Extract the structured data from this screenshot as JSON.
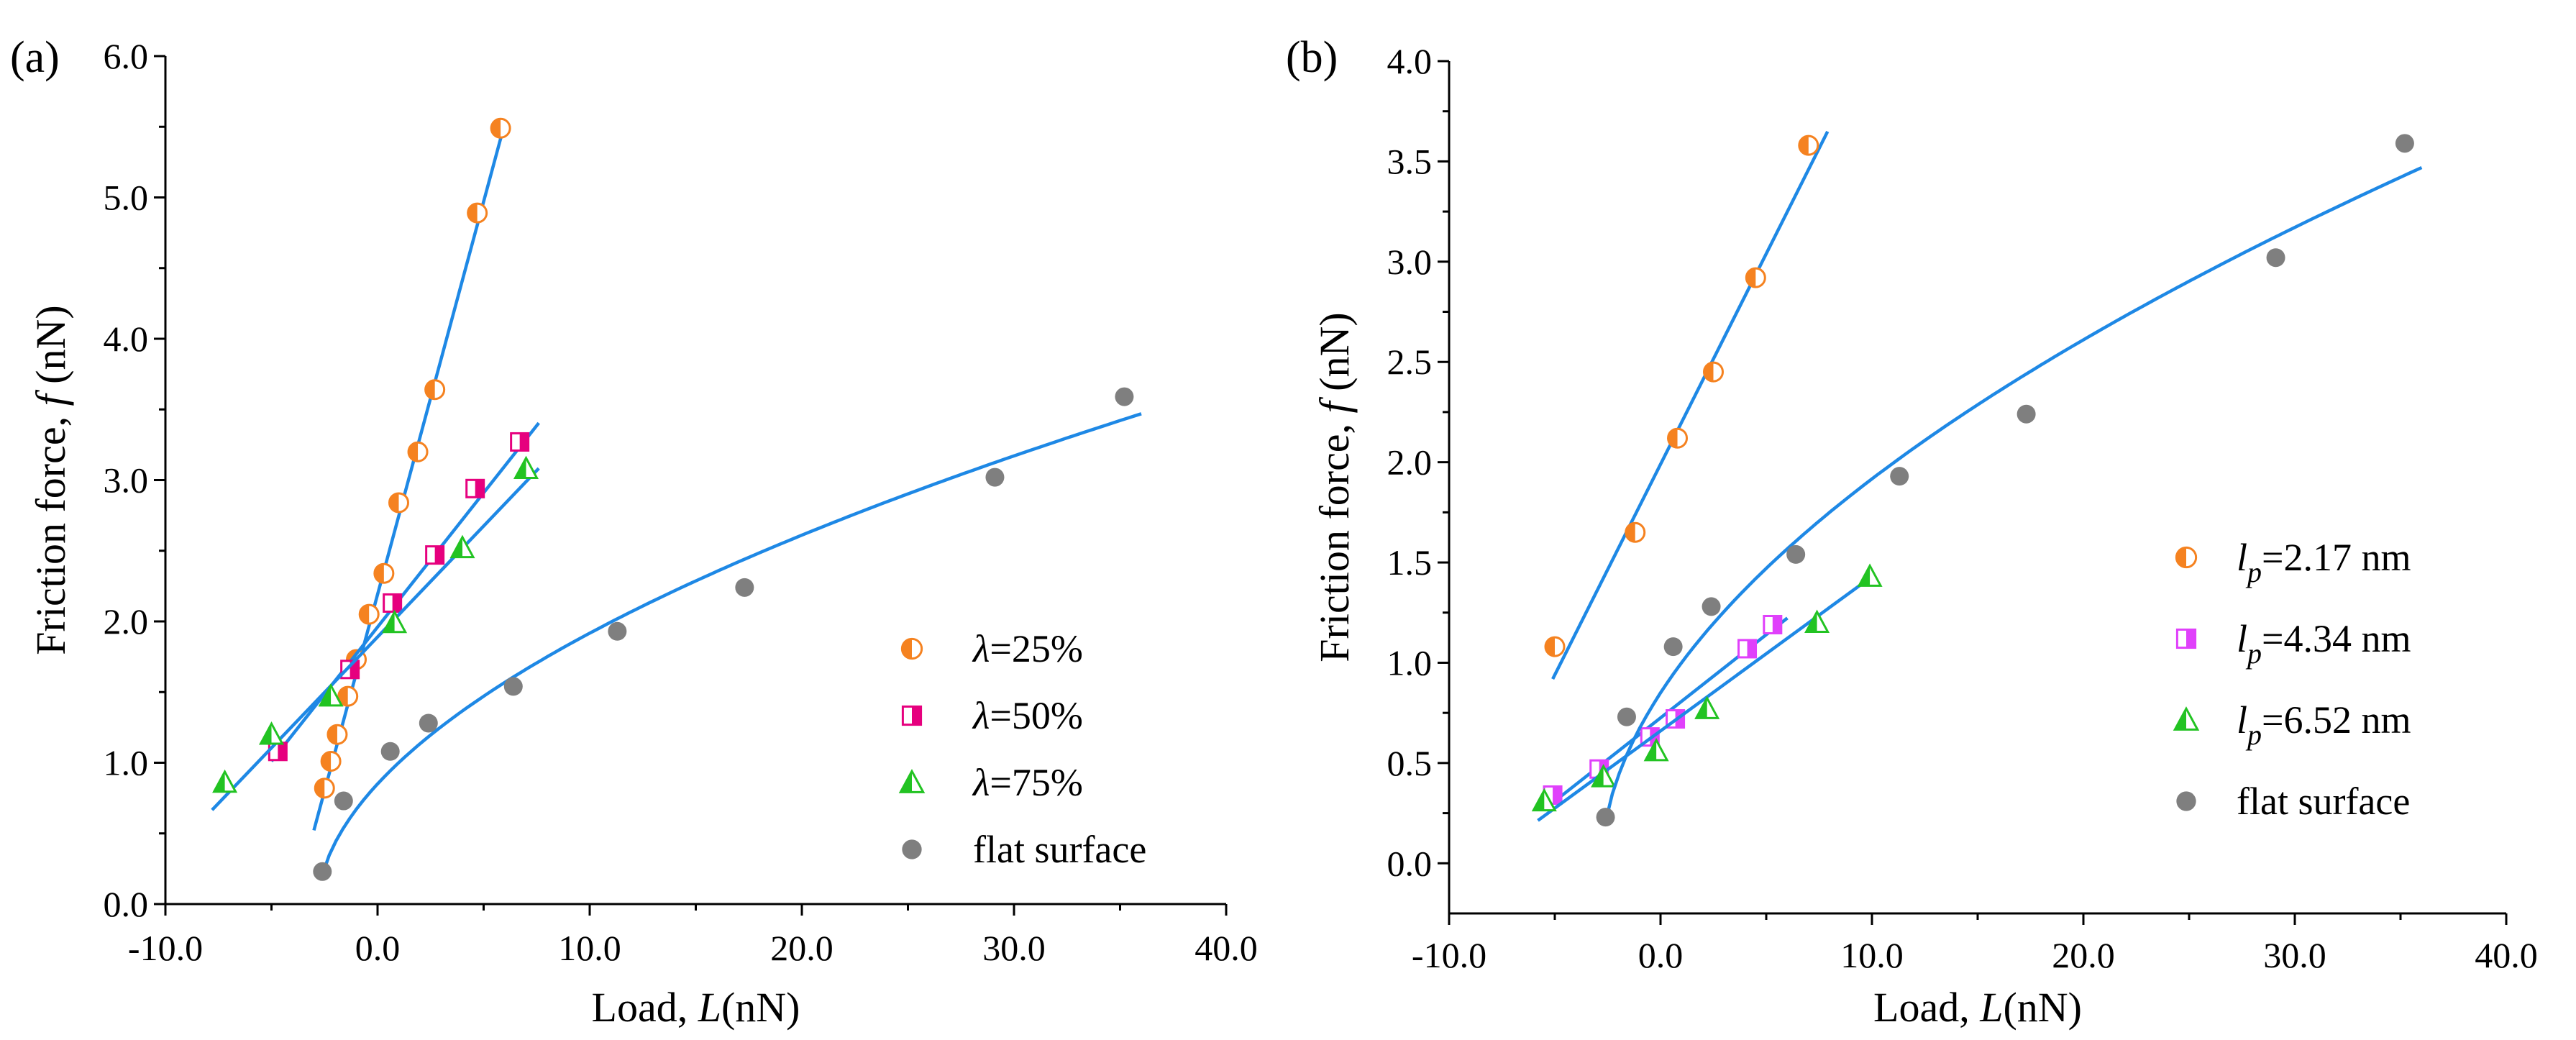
{
  "chart_data": [
    {
      "panel": "(a)",
      "type": "scatter",
      "xlabel": "Load, L(nN)",
      "xlabel_parts": [
        "Load, ",
        "L",
        "(nN)"
      ],
      "ylabel": "Friction force, f (nN)",
      "ylabel_parts": [
        "Friction force, ",
        "f",
        " (nN)"
      ],
      "xlim": [
        -10,
        40
      ],
      "ylim": [
        0,
        6
      ],
      "xticks": [
        -10,
        0,
        10,
        20,
        30,
        40
      ],
      "xtick_labels": [
        "-10.0",
        "0.0",
        "10.0",
        "20.0",
        "30.0",
        "40.0"
      ],
      "yticks": [
        0,
        1,
        2,
        3,
        4,
        5,
        6
      ],
      "ytick_labels": [
        "0.0",
        "1.0",
        "2.0",
        "3.0",
        "4.0",
        "5.0",
        "6.0"
      ],
      "legend_position": "bottom-right",
      "series": [
        {
          "name": "λ=25%",
          "label_parts": [
            "λ",
            "=25%"
          ],
          "marker": "circle-half",
          "color": "#F58220",
          "x": [
            -2.5,
            -2.2,
            -1.9,
            -1.4,
            -1.0,
            -0.4,
            0.3,
            1.0,
            1.9,
            2.7,
            4.7,
            5.8
          ],
          "y": [
            0.82,
            1.01,
            1.2,
            1.47,
            1.73,
            2.05,
            2.34,
            2.84,
            3.2,
            3.64,
            4.89,
            5.49
          ],
          "fit": {
            "kind": "linear",
            "x0": -3.0,
            "x1": 5.9,
            "slope": 0.556,
            "intercept": 2.19
          }
        },
        {
          "name": "λ=50%",
          "label_parts": [
            "λ",
            "=50%"
          ],
          "marker": "square-half",
          "color": "#E6007E",
          "x": [
            -4.7,
            -1.3,
            0.7,
            2.7,
            4.6,
            6.7
          ],
          "y": [
            1.08,
            1.66,
            2.13,
            2.47,
            2.94,
            3.27
          ],
          "fit": {
            "kind": "linear",
            "x0": -5.0,
            "x1": 7.6,
            "slope": 0.19,
            "intercept": 1.96
          }
        },
        {
          "name": "λ=75%",
          "label_parts": [
            "λ",
            "=75%"
          ],
          "marker": "triangle-half",
          "color": "#22C322",
          "x": [
            -7.2,
            -5.0,
            -2.2,
            0.8,
            4.0,
            7.0
          ],
          "y": [
            0.86,
            1.2,
            1.47,
            1.99,
            2.52,
            3.08
          ],
          "fit": {
            "kind": "linear",
            "x0": -7.8,
            "x1": 7.6,
            "slope": 0.157,
            "intercept": 1.89
          }
        },
        {
          "name": "flat surface",
          "label_parts": [
            "",
            "flat surface"
          ],
          "marker": "circle-filled",
          "color": "#7F7F7F",
          "x": [
            -2.6,
            -1.6,
            0.6,
            2.4,
            6.4,
            11.3,
            17.3,
            29.1,
            35.2
          ],
          "y": [
            0.23,
            0.73,
            1.08,
            1.28,
            1.54,
            1.93,
            2.24,
            3.02,
            3.59
          ],
          "fit": {
            "kind": "power",
            "x0": -2.6,
            "x1": 36.0,
            "x_offset": 2.8,
            "a": 0.49,
            "b": 0.535
          }
        }
      ]
    },
    {
      "panel": "(b)",
      "type": "scatter",
      "xlabel": "Load, L(nN)",
      "xlabel_parts": [
        "Load, ",
        "L",
        "(nN)"
      ],
      "ylabel": "Friction force, f (nN)",
      "ylabel_parts": [
        "Friction force, ",
        "f",
        " (nN)"
      ],
      "xlim": [
        -10,
        40
      ],
      "ylim": [
        -0.25,
        4
      ],
      "xticks": [
        -10,
        0,
        10,
        20,
        30,
        40
      ],
      "xtick_labels": [
        "-10.0",
        "0.0",
        "10.0",
        "20.0",
        "30.0",
        "40.0"
      ],
      "yticks": [
        0,
        0.5,
        1,
        1.5,
        2,
        2.5,
        3,
        3.5,
        4
      ],
      "ytick_labels": [
        "0.0",
        "0.5",
        "1.0",
        "1.5",
        "2.0",
        "2.5",
        "3.0",
        "3.5",
        "4.0"
      ],
      "legend_position": "right",
      "series": [
        {
          "name": "lp=2.17 nm",
          "label_parts": [
            "l",
            "p",
            "=2.17 nm"
          ],
          "marker": "circle-half",
          "color": "#F58220",
          "x": [
            -5.0,
            -1.2,
            0.8,
            2.5,
            4.5,
            7.0
          ],
          "y": [
            1.08,
            1.65,
            2.12,
            2.45,
            2.92,
            3.58
          ],
          "fit": {
            "kind": "linear",
            "x0": -5.1,
            "x1": 7.9,
            "slope": 0.21,
            "intercept": 1.99
          }
        },
        {
          "name": "lp=4.34 nm",
          "label_parts": [
            "l",
            "p",
            "=4.34 nm"
          ],
          "marker": "square-half",
          "color": "#E040FB",
          "x": [
            -5.1,
            -2.9,
            -0.5,
            0.7,
            4.1,
            5.3
          ],
          "y": [
            0.34,
            0.47,
            0.63,
            0.72,
            1.07,
            1.19
          ],
          "fit": {
            "kind": "linear",
            "x0": -5.5,
            "x1": 6.0,
            "slope": 0.083,
            "intercept": 0.725
          }
        },
        {
          "name": "lp=6.52 nm",
          "label_parts": [
            "l",
            "p",
            "=6.52 nm"
          ],
          "marker": "triangle-half",
          "color": "#22C322",
          "x": [
            -5.5,
            -2.7,
            -0.2,
            2.2,
            7.4,
            9.9
          ],
          "y": [
            0.31,
            0.43,
            0.56,
            0.77,
            1.2,
            1.43
          ],
          "fit": {
            "kind": "linear",
            "x0": -5.8,
            "x1": 9.8,
            "slope": 0.077,
            "intercept": 0.66
          }
        },
        {
          "name": "flat surface",
          "label_parts": [
            "",
            "flat surface"
          ],
          "marker": "circle-filled",
          "color": "#7F7F7F",
          "x": [
            -2.6,
            -1.6,
            0.6,
            2.4,
            6.4,
            11.3,
            17.3,
            29.1,
            35.2
          ],
          "y": [
            0.23,
            0.73,
            1.08,
            1.28,
            1.54,
            1.93,
            2.24,
            3.02,
            3.59
          ],
          "fit": {
            "kind": "power",
            "x0": -2.6,
            "x1": 36.0,
            "x_offset": 2.8,
            "a": 0.49,
            "b": 0.535
          }
        }
      ]
    }
  ],
  "colors": {
    "fit_line": "#1E88E5",
    "axis": "#000000"
  }
}
